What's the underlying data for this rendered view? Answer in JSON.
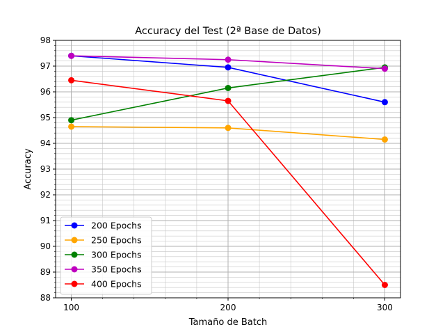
{
  "chart_data": {
    "type": "line",
    "title": "Accuracy del Test (2ª Base de Datos)",
    "xlabel": "Tamaño de Batch",
    "ylabel": "Accuracy",
    "x": [
      100,
      200,
      300
    ],
    "x_ticks": [
      "100",
      "200",
      "300"
    ],
    "xlim": [
      90,
      310
    ],
    "ylim": [
      88,
      98
    ],
    "y_ticks": [
      "88",
      "89",
      "90",
      "91",
      "92",
      "93",
      "94",
      "95",
      "96",
      "97",
      "98"
    ],
    "grid": "major and minor",
    "legend_position": "lower-left",
    "series": [
      {
        "name": "200 Epochs",
        "color": "#0000ff",
        "values": [
          97.4,
          96.95,
          95.6
        ]
      },
      {
        "name": "250 Epochs",
        "color": "#ffa500",
        "values": [
          94.65,
          94.6,
          94.15
        ]
      },
      {
        "name": "300 Epochs",
        "color": "#008000",
        "values": [
          94.9,
          96.15,
          96.95
        ]
      },
      {
        "name": "350 Epochs",
        "color": "#bf00bf",
        "values": [
          97.4,
          97.25,
          96.9
        ]
      },
      {
        "name": "400 Epochs",
        "color": "#ff0000",
        "values": [
          96.45,
          95.65,
          88.5
        ]
      }
    ]
  }
}
